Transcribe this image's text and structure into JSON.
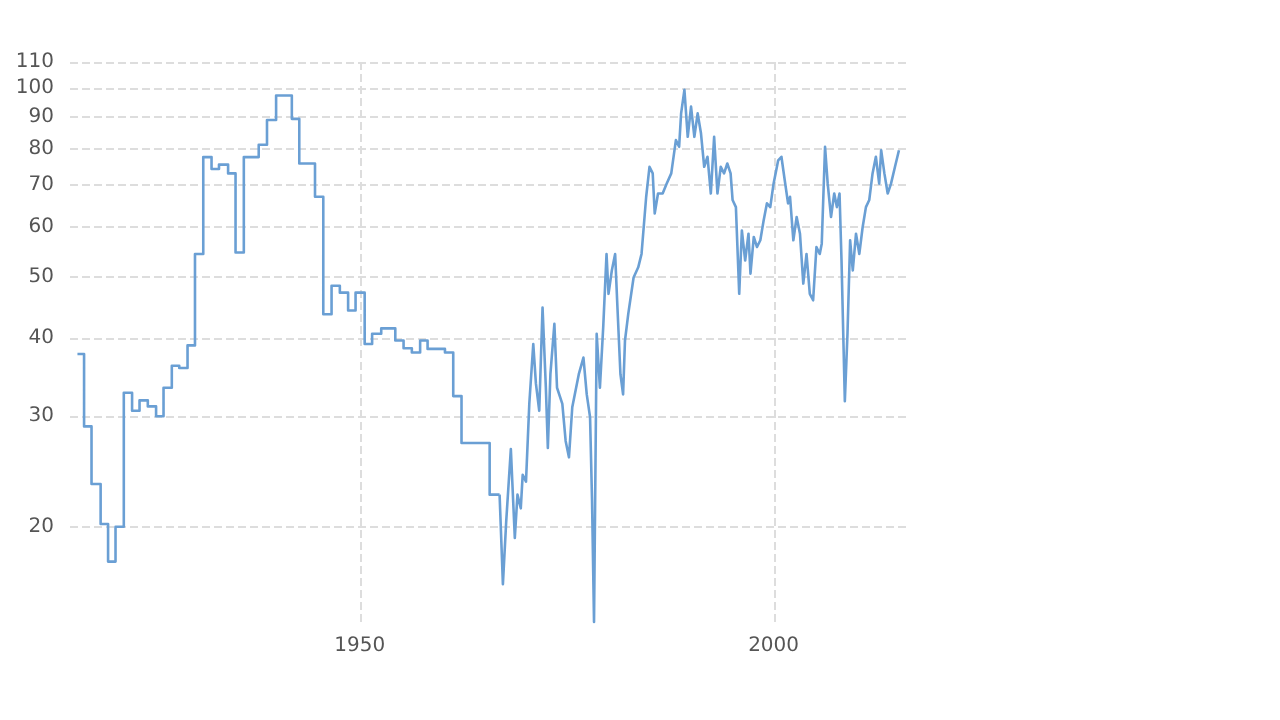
{
  "chart_data": {
    "type": "step",
    "log": "y",
    "grid": true,
    "xlim": [
      1915,
      2016
    ],
    "xticks": [
      1950,
      2000
    ],
    "ylim": [
      14,
      110
    ],
    "yticks": [
      20,
      30,
      40,
      50,
      60,
      70,
      80,
      90,
      100,
      110
    ],
    "series": [
      {
        "color": "#6a9fd4",
        "x": [
          1915.9,
          1916.7,
          1917.6,
          1918.7,
          1919.6,
          1920.5,
          1921.5,
          1922.5,
          1923.4,
          1924.4,
          1925.4,
          1926.3,
          1927.3,
          1928.2,
          1929.2,
          1930.1,
          1931.1,
          1932.1,
          1933.0,
          1934.1,
          1935.0,
          1936.0,
          1937.8,
          1938.8,
          1939.9,
          1941.8,
          1942.7,
          1944.6,
          1945.6,
          1946.6,
          1947.6,
          1948.6,
          1949.5,
          1950.6,
          1951.5,
          1952.6,
          1954.3,
          1955.3,
          1956.3,
          1957.3,
          1958.2,
          1960.3,
          1961.3,
          1962.3,
          1965.7,
          1966.9
        ],
        "values": [
          37.7,
          28.9,
          23.4,
          20.2,
          17.6,
          20,
          32.7,
          30.6,
          31.8,
          31.1,
          30,
          33.3,
          36.1,
          35.8,
          38.9,
          54.4,
          77.6,
          74.3,
          75.5,
          73.1,
          54.7,
          77.6,
          81.2,
          88.9,
          97.3,
          89.3,
          75.8,
          67.1,
          43.6,
          48.4,
          47.2,
          44.2,
          47.2,
          39.1,
          40.6,
          41.4,
          39.6,
          38.5,
          37.9,
          39.6,
          38.4,
          37.9,
          32.3,
          27.2,
          22.5,
          22.5
        ]
      },
      {
        "type": "line",
        "color": "#6a9fd4",
        "x": [
          1966.9,
          1967.14,
          1967.3,
          1967.7,
          1968.26,
          1968.74,
          1969.06,
          1969.46,
          1969.69,
          1970.09,
          1970.49,
          1970.97,
          1971.29,
          1971.69,
          1972.09,
          1972.49,
          1972.73,
          1973.04,
          1973.52,
          1973.84,
          1974.48,
          1974.88,
          1975.28,
          1975.68,
          1976.47,
          1977.03,
          1977.43,
          1977.83,
          1978.07,
          1978.31,
          1978.63,
          1979.02,
          1979.42,
          1979.82,
          1980.06,
          1980.46,
          1980.86,
          1981.1,
          1981.5,
          1981.82,
          1982.05,
          1982.45,
          1983.09,
          1983.65,
          1984.05,
          1984.61,
          1985.01,
          1985.4,
          1985.64,
          1986.04,
          1986.6,
          1987.08,
          1987.64,
          1988.2,
          1988.59,
          1988.83,
          1989.23,
          1989.63,
          1990.03,
          1990.43,
          1990.83,
          1991.23,
          1991.62,
          1992.02,
          1992.42,
          1992.82,
          1993.22,
          1993.62,
          1994.02,
          1994.41,
          1994.81,
          1995.05,
          1995.45,
          1995.85,
          1996.17,
          1996.57,
          1996.97,
          1997.21,
          1997.61,
          1998.0,
          1998.4,
          1998.8,
          1999.2,
          1999.6,
          2000.0,
          2000.56,
          2000.95,
          2001.35,
          2001.75,
          2001.99,
          2002.39,
          2002.79,
          2003.19,
          2003.59,
          2003.98,
          2004.38,
          2004.78,
          2005.18,
          2005.58,
          2005.82,
          2006.22,
          2006.54,
          2006.94,
          2007.33,
          2007.65,
          2007.97,
          2008.21,
          2008.61,
          2008.93,
          2009.25,
          2009.57,
          2009.96,
          2010.36,
          2010.76,
          2011.16,
          2011.56,
          2011.96,
          2012.36,
          2012.76,
          2013.0,
          2013.39,
          2013.79,
          2014.19,
          2014.67,
          2015.15
        ],
        "values": [
          22.5,
          18.5,
          16.2,
          20.4,
          26.6,
          19.2,
          22.5,
          21.4,
          24.2,
          23.6,
          31.4,
          39.1,
          33.8,
          30.6,
          44.7,
          33.3,
          26.7,
          35.0,
          42.1,
          33.3,
          31.4,
          27.4,
          25.8,
          31.0,
          35.0,
          37.2,
          32.5,
          29.9,
          22.0,
          14.1,
          40.6,
          33.3,
          41.6,
          54.4,
          47.0,
          51.2,
          54.4,
          45.9,
          35.0,
          32.5,
          39.6,
          43.7,
          49.9,
          51.8,
          54.4,
          67.1,
          74.9,
          73.1,
          63.1,
          67.9,
          67.9,
          70.4,
          73.1,
          82.6,
          80.6,
          91.1,
          99.3,
          83.6,
          93.4,
          83.6,
          91.1,
          84.7,
          74.9,
          77.7,
          67.9,
          83.6,
          67.9,
          74.9,
          73.1,
          75.8,
          73.1,
          66.3,
          64.6,
          47.0,
          59.3,
          53.1,
          58.6,
          50.6,
          57.9,
          55.8,
          57.2,
          61.5,
          65.5,
          64.6,
          70.4,
          76.7,
          77.7,
          71.3,
          65.5,
          67.1,
          57.2,
          62.3,
          58.6,
          48.8,
          54.4,
          47.0,
          45.9,
          55.8,
          54.4,
          56.5,
          80.6,
          70.4,
          62.3,
          67.9,
          64.6,
          67.9,
          53.1,
          31.7,
          40.6,
          57.2,
          51.2,
          58.6,
          54.4,
          60.0,
          64.6,
          66.3,
          73.1,
          77.7,
          70.4,
          79.6,
          73.1,
          67.9,
          70.4,
          74.9,
          79.6
        ]
      }
    ]
  }
}
